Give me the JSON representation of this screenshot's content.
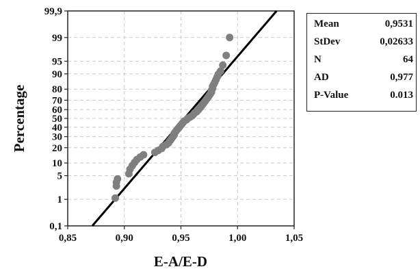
{
  "chart_data": {
    "type": "scatter",
    "title": "",
    "xlabel": "E-A/E-D",
    "ylabel": "Percentage",
    "xlim": [
      0.85,
      1.05
    ],
    "x_ticks": [
      0.85,
      0.9,
      0.95,
      1.0,
      1.05
    ],
    "x_tick_labels": [
      "0,85",
      "0,90",
      "0,95",
      "1,00",
      "1,05"
    ],
    "y_scale": "normal-probability",
    "y_ticks": [
      0.1,
      1,
      5,
      10,
      20,
      30,
      40,
      50,
      60,
      70,
      80,
      90,
      95,
      99,
      99.9
    ],
    "y_tick_labels": [
      "0,1",
      "1",
      "5",
      "10",
      "20",
      "30",
      "40",
      "50",
      "60",
      "70",
      "80",
      "90",
      "95",
      "99",
      "99,9"
    ],
    "grid": true,
    "fit_line": {
      "mean": 0.9531,
      "stdev": 0.02633
    },
    "points": [
      {
        "x": 0.892,
        "p": 1.1
      },
      {
        "x": 0.893,
        "p": 2.6
      },
      {
        "x": 0.893,
        "p": 3.3
      },
      {
        "x": 0.894,
        "p": 4.1
      },
      {
        "x": 0.904,
        "p": 5.6
      },
      {
        "x": 0.905,
        "p": 7.2
      },
      {
        "x": 0.907,
        "p": 8.7
      },
      {
        "x": 0.909,
        "p": 10.2
      },
      {
        "x": 0.911,
        "p": 11.8
      },
      {
        "x": 0.914,
        "p": 13.3
      },
      {
        "x": 0.917,
        "p": 14.8
      },
      {
        "x": 0.927,
        "p": 16.4
      },
      {
        "x": 0.93,
        "p": 17.9
      },
      {
        "x": 0.933,
        "p": 19.4
      },
      {
        "x": 0.934,
        "p": 21.0
      },
      {
        "x": 0.937,
        "p": 22.5
      },
      {
        "x": 0.939,
        "p": 24.0
      },
      {
        "x": 0.94,
        "p": 25.6
      },
      {
        "x": 0.941,
        "p": 27.1
      },
      {
        "x": 0.942,
        "p": 28.6
      },
      {
        "x": 0.943,
        "p": 30.1
      },
      {
        "x": 0.944,
        "p": 31.7
      },
      {
        "x": 0.944,
        "p": 33.2
      },
      {
        "x": 0.945,
        "p": 34.7
      },
      {
        "x": 0.946,
        "p": 36.3
      },
      {
        "x": 0.947,
        "p": 37.8
      },
      {
        "x": 0.948,
        "p": 39.3
      },
      {
        "x": 0.949,
        "p": 40.9
      },
      {
        "x": 0.95,
        "p": 42.4
      },
      {
        "x": 0.951,
        "p": 43.9
      },
      {
        "x": 0.952,
        "p": 45.5
      },
      {
        "x": 0.953,
        "p": 47.0
      },
      {
        "x": 0.955,
        "p": 48.5
      },
      {
        "x": 0.956,
        "p": 50.0
      },
      {
        "x": 0.958,
        "p": 51.5
      },
      {
        "x": 0.96,
        "p": 53.1
      },
      {
        "x": 0.961,
        "p": 54.6
      },
      {
        "x": 0.962,
        "p": 56.1
      },
      {
        "x": 0.964,
        "p": 57.7
      },
      {
        "x": 0.965,
        "p": 59.2
      },
      {
        "x": 0.966,
        "p": 60.7
      },
      {
        "x": 0.967,
        "p": 62.3
      },
      {
        "x": 0.968,
        "p": 63.8
      },
      {
        "x": 0.969,
        "p": 65.3
      },
      {
        "x": 0.97,
        "p": 66.9
      },
      {
        "x": 0.971,
        "p": 68.4
      },
      {
        "x": 0.972,
        "p": 69.9
      },
      {
        "x": 0.973,
        "p": 71.4
      },
      {
        "x": 0.974,
        "p": 73.0
      },
      {
        "x": 0.975,
        "p": 74.5
      },
      {
        "x": 0.976,
        "p": 76.0
      },
      {
        "x": 0.977,
        "p": 77.6
      },
      {
        "x": 0.977,
        "p": 79.1
      },
      {
        "x": 0.978,
        "p": 80.6
      },
      {
        "x": 0.978,
        "p": 82.2
      },
      {
        "x": 0.979,
        "p": 83.7
      },
      {
        "x": 0.98,
        "p": 85.2
      },
      {
        "x": 0.981,
        "p": 86.8
      },
      {
        "x": 0.982,
        "p": 88.3
      },
      {
        "x": 0.983,
        "p": 89.8
      },
      {
        "x": 0.985,
        "p": 91.3
      },
      {
        "x": 0.987,
        "p": 93.7
      },
      {
        "x": 0.99,
        "p": 96.5
      },
      {
        "x": 0.993,
        "p": 99.0
      }
    ]
  },
  "stats": [
    {
      "label": "Mean",
      "value": "0,9531"
    },
    {
      "label": "StDev",
      "value": "0,02633"
    },
    {
      "label": "N",
      "value": "64"
    },
    {
      "label": "AD",
      "value": "0,977"
    },
    {
      "label": "P-Value",
      "value": "0.013"
    }
  ],
  "colors": {
    "point": "#7f7f7f",
    "fit_line": "#000000",
    "grid": "#c8c8c8",
    "axis": "#222222"
  }
}
